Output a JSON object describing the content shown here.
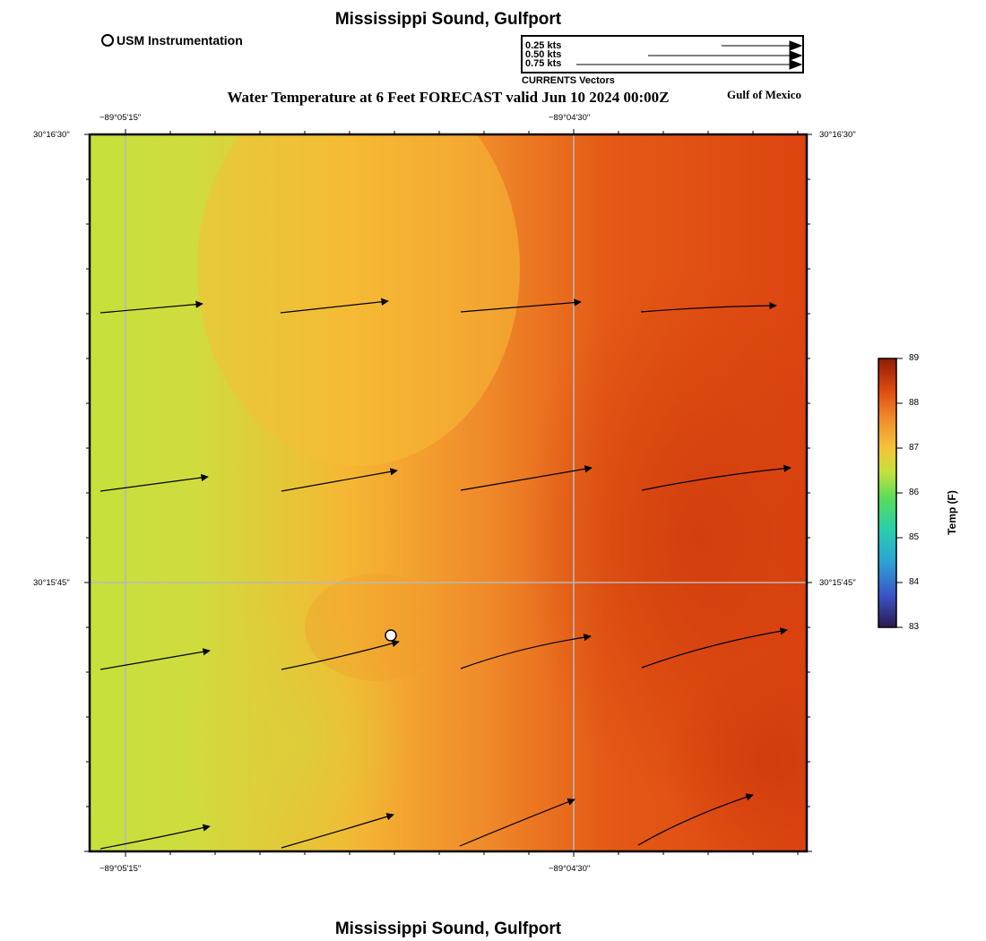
{
  "title": "Mississippi Sound, Gulfport",
  "footer_title": "Mississippi Sound, Gulfport",
  "subtitle": "Water Temperature at 6 Feet FORECAST valid Jun 10 2024 00:00Z",
  "region_label": "Gulf of Mexico",
  "station_legend": {
    "label": "USM Instrumentation"
  },
  "vector_legend": {
    "caption": "CURRENTS Vectors",
    "entries": [
      "0.25 kts",
      "0.50 kts",
      "0.75 kts"
    ]
  },
  "axes": {
    "top_lon_ticks": [
      "−89°05'15\"",
      "−89°04'30\""
    ],
    "bottom_lon_ticks": [
      "−89°05'15\"",
      "−89°04'30\""
    ],
    "left_lat_ticks": [
      "30°16'30\"",
      "30°15'45\""
    ],
    "right_lat_ticks": [
      "30°16'30\"",
      "30°15'45\""
    ]
  },
  "colorbar": {
    "title": "Temp (F)",
    "tick_labels": [
      "89",
      "88",
      "87",
      "86",
      "85",
      "84",
      "83"
    ],
    "min": 83,
    "max": 89,
    "colors": [
      "#2b1a4f",
      "#3a6fd0",
      "#27b0c8",
      "#3fd87a",
      "#c8e03a",
      "#f6c33a",
      "#f08a2a",
      "#e04a10",
      "#9a1c05"
    ]
  },
  "colors": {
    "cool": "#c6e03c",
    "mid": "#f5b733",
    "warm": "#df4410"
  },
  "icons": {
    "station": "open-circle-icon",
    "vector": "arrow-icon"
  }
}
